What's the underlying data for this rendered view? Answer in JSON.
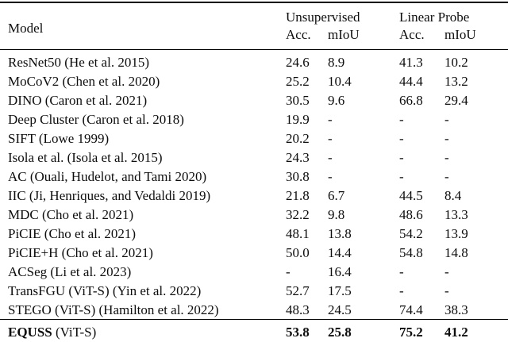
{
  "table": {
    "header": {
      "model_label": "Model",
      "group_unsupervised": "Unsupervised",
      "group_linear_probe": "Linear Probe",
      "sub_unsup_acc": "Acc.",
      "sub_unsup_miou": "mIoU",
      "sub_linear_acc": "Acc.",
      "sub_linear_miou": "mIoU"
    },
    "rows": [
      {
        "cells": [
          "ResNet50 (He et al. 2015)",
          "24.6",
          "8.9",
          "41.3",
          "10.2"
        ]
      },
      {
        "cells": [
          "MoCoV2 (Chen et al. 2020)",
          "25.2",
          "10.4",
          "44.4",
          "13.2"
        ]
      },
      {
        "cells": [
          "DINO (Caron et al. 2021)",
          "30.5",
          "9.6",
          "66.8",
          "29.4"
        ]
      },
      {
        "cells": [
          "Deep Cluster (Caron et al. 2018)",
          "19.9",
          "-",
          "-",
          "-"
        ]
      },
      {
        "cells": [
          "SIFT (Lowe 1999)",
          "20.2",
          "-",
          "-",
          "-"
        ]
      },
      {
        "cells": [
          "Isola et al. (Isola et al. 2015)",
          "24.3",
          "-",
          "-",
          "-"
        ]
      },
      {
        "cells": [
          "AC (Ouali, Hudelot, and Tami 2020)",
          "30.8",
          "-",
          "-",
          "-"
        ]
      },
      {
        "cells": [
          "IIC (Ji, Henriques, and Vedaldi 2019)",
          "21.8",
          "6.7",
          "44.5",
          "8.4"
        ]
      },
      {
        "cells": [
          "MDC (Cho et al. 2021)",
          "32.2",
          "9.8",
          "48.6",
          "13.3"
        ]
      },
      {
        "cells": [
          "PiCIE (Cho et al. 2021)",
          "48.1",
          "13.8",
          "54.2",
          "13.9"
        ]
      },
      {
        "cells": [
          "PiCIE+H (Cho et al. 2021)",
          "50.0",
          "14.4",
          "54.8",
          "14.8"
        ]
      },
      {
        "cells": [
          "ACSeg (Li et al. 2023)",
          "-",
          "16.4",
          "-",
          "-"
        ]
      },
      {
        "cells": [
          "TransFGU (ViT-S) (Yin et al. 2022)",
          "52.7",
          "17.5",
          "-",
          "-"
        ]
      },
      {
        "cells": [
          "STEGO (ViT-S) (Hamilton et al. 2022)",
          "48.3",
          "24.5",
          "74.4",
          "38.3"
        ]
      }
    ],
    "final_row": {
      "model_bold": "EQUSS",
      "model_suffix": " (ViT-S)",
      "u_acc": "53.8",
      "u_miou": "25.8",
      "l_acc": "75.2",
      "l_miou": "41.2"
    }
  }
}
